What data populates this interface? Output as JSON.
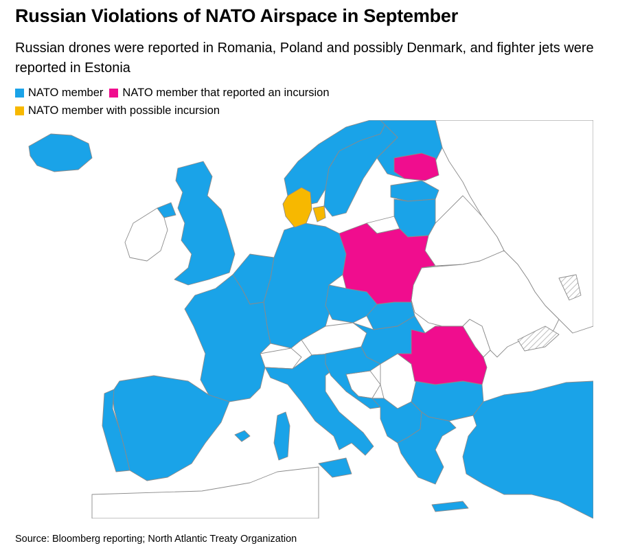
{
  "title": "Russian Violations of NATO Airspace in September",
  "subtitle": "Russian drones were reported in Romania, Poland and possibly Denmark, and fighter jets were reported in Estonia",
  "legend": [
    {
      "label": "NATO member",
      "color": "#1aa3e8"
    },
    {
      "label": "NATO member that reported an incursion",
      "color": "#f00d8e"
    },
    {
      "label": "NATO member with possible incursion",
      "color": "#f7b800"
    }
  ],
  "source": "Source: Bloomberg reporting; North Atlantic Treaty Organization",
  "map": {
    "colors": {
      "nato": "#1aa3e8",
      "incursion": "#f00d8e",
      "possible": "#f7b800",
      "other": "#ffffff",
      "border": "#8a8a8a"
    },
    "regions": [
      {
        "name": "iceland",
        "status": "nato"
      },
      {
        "name": "ireland",
        "status": "other"
      },
      {
        "name": "northern-ireland",
        "status": "nato"
      },
      {
        "name": "great-britain",
        "status": "nato"
      },
      {
        "name": "norway",
        "status": "nato"
      },
      {
        "name": "sweden",
        "status": "nato"
      },
      {
        "name": "finland",
        "status": "nato"
      },
      {
        "name": "denmark",
        "status": "possible"
      },
      {
        "name": "estonia",
        "status": "incursion"
      },
      {
        "name": "latvia",
        "status": "nato"
      },
      {
        "name": "lithuania",
        "status": "nato"
      },
      {
        "name": "russia-kaliningrad",
        "status": "other"
      },
      {
        "name": "belarus",
        "status": "other"
      },
      {
        "name": "ukraine",
        "status": "other"
      },
      {
        "name": "moldova",
        "status": "other"
      },
      {
        "name": "russia",
        "status": "other"
      },
      {
        "name": "poland",
        "status": "incursion"
      },
      {
        "name": "germany",
        "status": "nato"
      },
      {
        "name": "benelux",
        "status": "nato"
      },
      {
        "name": "france",
        "status": "nato"
      },
      {
        "name": "spain",
        "status": "nato"
      },
      {
        "name": "portugal",
        "status": "nato"
      },
      {
        "name": "switzerland",
        "status": "other"
      },
      {
        "name": "austria",
        "status": "other"
      },
      {
        "name": "italy",
        "status": "nato"
      },
      {
        "name": "czechia",
        "status": "nato"
      },
      {
        "name": "slovakia",
        "status": "nato"
      },
      {
        "name": "hungary",
        "status": "nato"
      },
      {
        "name": "slovenia-croatia",
        "status": "nato"
      },
      {
        "name": "bosnia",
        "status": "other"
      },
      {
        "name": "serbia",
        "status": "other"
      },
      {
        "name": "romania",
        "status": "incursion"
      },
      {
        "name": "bulgaria",
        "status": "nato"
      },
      {
        "name": "montenegro-albania-macedonia",
        "status": "nato"
      },
      {
        "name": "greece",
        "status": "nato"
      },
      {
        "name": "turkey",
        "status": "nato"
      },
      {
        "name": "north-africa",
        "status": "other"
      },
      {
        "name": "sardinia-corsica",
        "status": "nato"
      },
      {
        "name": "sicily",
        "status": "nato"
      },
      {
        "name": "crete",
        "status": "nato"
      },
      {
        "name": "balearics",
        "status": "nato"
      }
    ]
  }
}
